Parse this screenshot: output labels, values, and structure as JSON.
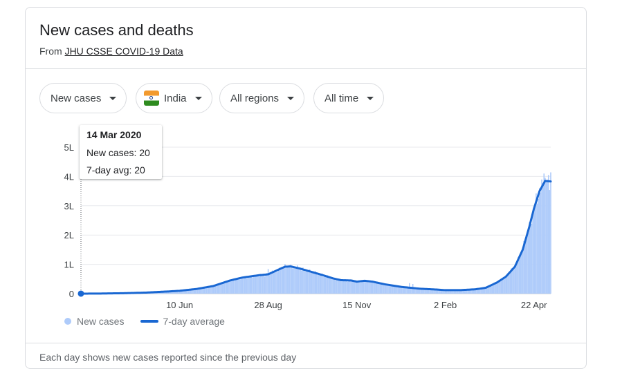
{
  "card": {
    "title": "New cases and deaths",
    "source_prefix": "From ",
    "source_link": "JHU CSSE COVID-19 Data",
    "footer": "Each day shows new cases reported since the previous day"
  },
  "filters": {
    "metric": "New cases",
    "country": "India",
    "region": "All regions",
    "period": "All time"
  },
  "tooltip": {
    "date": "14 Mar 2020",
    "new_cases": "New cases: 20",
    "avg": "7-day avg: 20"
  },
  "legend": {
    "bars": "New cases",
    "line": "7-day average"
  },
  "colors": {
    "bars": "#aecbfa",
    "line": "#1967d2",
    "grid": "#e8eaed",
    "axis_text": "#3c4043"
  },
  "chart_data": {
    "type": "bar",
    "x_axis": "date",
    "x_range": [
      "2020-03-14",
      "2021-05-07"
    ],
    "ylim": [
      0,
      500000
    ],
    "y_ticks": [
      {
        "value": 0,
        "label": "0"
      },
      {
        "value": 100000,
        "label": "1L"
      },
      {
        "value": 200000,
        "label": "2L"
      },
      {
        "value": 300000,
        "label": "3L"
      },
      {
        "value": 400000,
        "label": "4L"
      },
      {
        "value": 500000,
        "label": "5L"
      }
    ],
    "x_ticks": [
      {
        "date": "2020-06-10",
        "label": "10 Jun"
      },
      {
        "date": "2020-08-28",
        "label": "28 Aug"
      },
      {
        "date": "2020-11-15",
        "label": "15 Nov"
      },
      {
        "date": "2021-02-02",
        "label": "2 Feb"
      },
      {
        "date": "2021-04-22",
        "label": "22 Apr"
      }
    ],
    "grid": true,
    "legend_position": "bottom-left",
    "series": [
      {
        "name": "7-day average",
        "type": "line",
        "points": [
          [
            "2020-03-14",
            20
          ],
          [
            "2020-04-01",
            400
          ],
          [
            "2020-04-20",
            1500
          ],
          [
            "2020-05-10",
            3500
          ],
          [
            "2020-05-31",
            7500
          ],
          [
            "2020-06-10",
            9800
          ],
          [
            "2020-06-25",
            16000
          ],
          [
            "2020-07-10",
            26000
          ],
          [
            "2020-07-25",
            45000
          ],
          [
            "2020-08-05",
            55000
          ],
          [
            "2020-08-20",
            63000
          ],
          [
            "2020-08-28",
            66000
          ],
          [
            "2020-09-05",
            80000
          ],
          [
            "2020-09-12",
            92000
          ],
          [
            "2020-09-17",
            93000
          ],
          [
            "2020-09-25",
            86000
          ],
          [
            "2020-10-05",
            75000
          ],
          [
            "2020-10-15",
            64000
          ],
          [
            "2020-10-25",
            52000
          ],
          [
            "2020-11-01",
            46000
          ],
          [
            "2020-11-10",
            45000
          ],
          [
            "2020-11-15",
            41000
          ],
          [
            "2020-11-22",
            44000
          ],
          [
            "2020-11-29",
            41000
          ],
          [
            "2020-12-10",
            32000
          ],
          [
            "2020-12-25",
            23000
          ],
          [
            "2021-01-10",
            17000
          ],
          [
            "2021-01-25",
            14000
          ],
          [
            "2021-02-02",
            12000
          ],
          [
            "2021-02-15",
            12000
          ],
          [
            "2021-03-01",
            15000
          ],
          [
            "2021-03-10",
            20000
          ],
          [
            "2021-03-20",
            38000
          ],
          [
            "2021-03-28",
            58000
          ],
          [
            "2021-04-05",
            92000
          ],
          [
            "2021-04-12",
            150000
          ],
          [
            "2021-04-18",
            230000
          ],
          [
            "2021-04-22",
            290000
          ],
          [
            "2021-04-27",
            350000
          ],
          [
            "2021-05-02",
            385000
          ],
          [
            "2021-05-07",
            383000
          ]
        ]
      },
      {
        "name": "New cases",
        "type": "bar",
        "daily_peaks": [
          [
            "2020-08-28",
            84000
          ],
          [
            "2020-09-16",
            97000
          ],
          [
            "2021-01-01",
            36000
          ],
          [
            "2021-01-04",
            33000
          ],
          [
            "2021-05-01",
            410000
          ],
          [
            "2021-05-05",
            405000
          ],
          [
            "2021-05-07",
            414000
          ]
        ],
        "note_source": "daily bars follow the 7-day average with visible day-to-day noise"
      }
    ]
  }
}
